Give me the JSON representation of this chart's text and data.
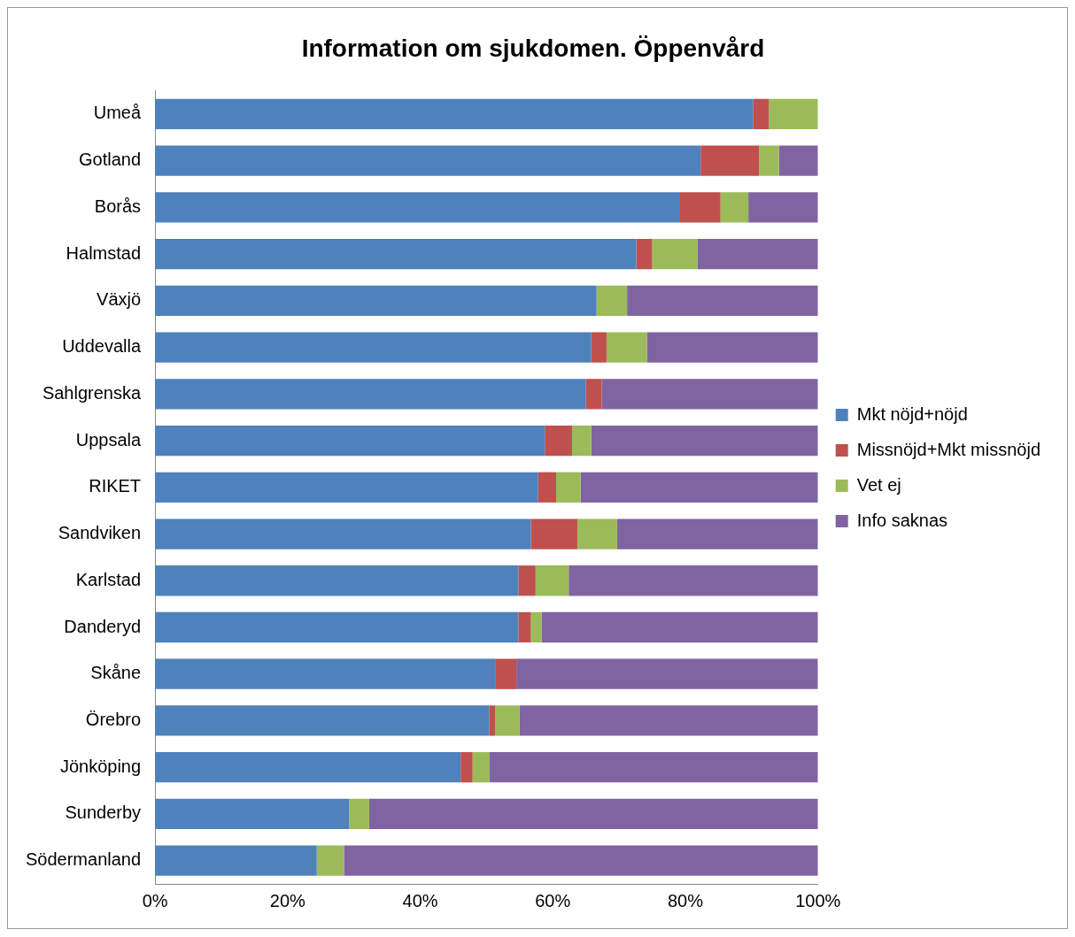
{
  "chart_data": {
    "type": "bar",
    "orientation": "horizontal",
    "stacked": true,
    "title": "Information om sjukdomen. Öppenvård",
    "categories": [
      "Umeå",
      "Gotland",
      "Borås",
      "Halmstad",
      "Växjö",
      "Uddevalla",
      "Sahlgrenska",
      "Uppsala",
      "RIKET",
      "Sandviken",
      "Karlstad",
      "Danderyd",
      "Skåne",
      "Örebro",
      "Jönköping",
      "Sunderby",
      "Södermanland"
    ],
    "series": [
      {
        "name": "Mkt nöjd+nöjd",
        "color": "#4f81bd",
        "values": [
          90.2,
          82.3,
          79.2,
          72.6,
          66.6,
          65.8,
          65.0,
          58.8,
          57.8,
          56.7,
          54.8,
          54.8,
          51.3,
          50.4,
          46.1,
          29.3,
          24.4
        ]
      },
      {
        "name": "Missnöjd+Mkt missnöjd",
        "color": "#c0504d",
        "values": [
          2.4,
          8.8,
          6.1,
          2.4,
          0,
          2.3,
          2.4,
          4.1,
          2.7,
          7.0,
          2.6,
          1.9,
          3.2,
          0.9,
          1.8,
          0,
          0
        ]
      },
      {
        "name": "Vet ej",
        "color": "#9bbb59",
        "values": [
          7.4,
          3.0,
          4.2,
          6.8,
          4.6,
          6.1,
          0,
          2.9,
          3.7,
          6.0,
          5.0,
          1.6,
          0,
          3.7,
          2.5,
          3.0,
          4.1
        ]
      },
      {
        "name": "Info saknas",
        "color": "#8064a2",
        "values": [
          0,
          5.9,
          10.5,
          18.2,
          28.8,
          25.8,
          32.6,
          34.2,
          35.8,
          30.3,
          37.6,
          41.7,
          45.5,
          45.0,
          49.6,
          67.7,
          71.5
        ]
      }
    ],
    "xlim": [
      0,
      100
    ],
    "xticks": [
      {
        "value": 0,
        "label": "0%"
      },
      {
        "value": 20,
        "label": "20%"
      },
      {
        "value": 40,
        "label": "40%"
      },
      {
        "value": 60,
        "label": "60%"
      },
      {
        "value": 80,
        "label": "80%"
      },
      {
        "value": 100,
        "label": "100%"
      }
    ],
    "grid": false,
    "legend": "right"
  }
}
